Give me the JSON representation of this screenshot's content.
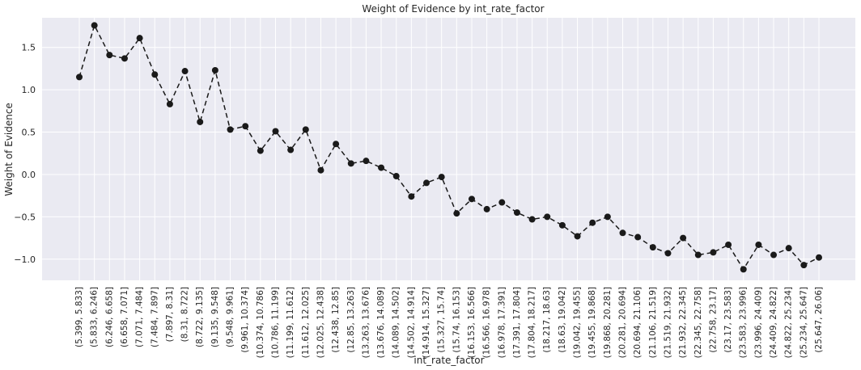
{
  "chart_data": {
    "type": "line",
    "title": "Weight of Evidence by int_rate_factor",
    "xlabel": "int_rate_factor",
    "ylabel": "Weight of Evidence",
    "ylim": [
      -1.25,
      1.85
    ],
    "yticks": [
      1.5,
      1.0,
      0.5,
      0.0,
      -0.5,
      -1.0
    ],
    "ytick_labels": [
      "1.5",
      "1.0",
      "0.5",
      "0.0",
      "−0.5",
      "−1.0"
    ],
    "grid": true,
    "style": {
      "background": "#eaeaf2",
      "line_color": "#1a1a1a",
      "line_style": "dashed",
      "marker": "circle"
    },
    "categories": [
      "(5.399, 5.833]",
      "(5.833, 6.246]",
      "(6.246, 6.658]",
      "(6.658, 7.071]",
      "(7.071, 7.484]",
      "(7.484, 7.897]",
      "(7.897, 8.31]",
      "(8.31, 8.722]",
      "(8.722, 9.135]",
      "(9.135, 9.548]",
      "(9.548, 9.961]",
      "(9.961, 10.374]",
      "(10.374, 10.786]",
      "(10.786, 11.199]",
      "(11.199, 11.612]",
      "(11.612, 12.025]",
      "(12.025, 12.438]",
      "(12.438, 12.85]",
      "(12.85, 13.263]",
      "(13.263, 13.676]",
      "(13.676, 14.089]",
      "(14.089, 14.502]",
      "(14.502, 14.914]",
      "(14.914, 15.327]",
      "(15.327, 15.74]",
      "(15.74, 16.153]",
      "(16.153, 16.566]",
      "(16.566, 16.978]",
      "(16.978, 17.391]",
      "(17.391, 17.804]",
      "(17.804, 18.217]",
      "(18.217, 18.63]",
      "(18.63, 19.042]",
      "(19.042, 19.455]",
      "(19.455, 19.868]",
      "(19.868, 20.281]",
      "(20.281, 20.694]",
      "(20.694, 21.106]",
      "(21.106, 21.519]",
      "(21.519, 21.932]",
      "(21.932, 22.345]",
      "(22.345, 22.758]",
      "(22.758, 23.17]",
      "(23.17, 23.583]",
      "(23.583, 23.996]",
      "(23.996, 24.409]",
      "(24.409, 24.822]",
      "(24.822, 25.234]",
      "(25.234, 25.647]",
      "(25.647, 26.06]"
    ],
    "values": [
      1.15,
      1.76,
      1.41,
      1.37,
      1.61,
      1.18,
      0.83,
      1.22,
      0.62,
      1.23,
      0.53,
      0.57,
      0.28,
      0.51,
      0.29,
      0.53,
      0.05,
      0.36,
      0.13,
      0.16,
      0.08,
      -0.02,
      -0.26,
      -0.1,
      -0.03,
      -0.46,
      -0.29,
      -0.41,
      -0.33,
      -0.45,
      -0.53,
      -0.5,
      -0.6,
      -0.73,
      -0.57,
      -0.5,
      -0.69,
      -0.74,
      -0.86,
      -0.93,
      -0.75,
      -0.95,
      -0.92,
      -0.83,
      -1.12,
      -0.83,
      -0.95,
      -0.87,
      -1.07,
      -0.98
    ]
  }
}
